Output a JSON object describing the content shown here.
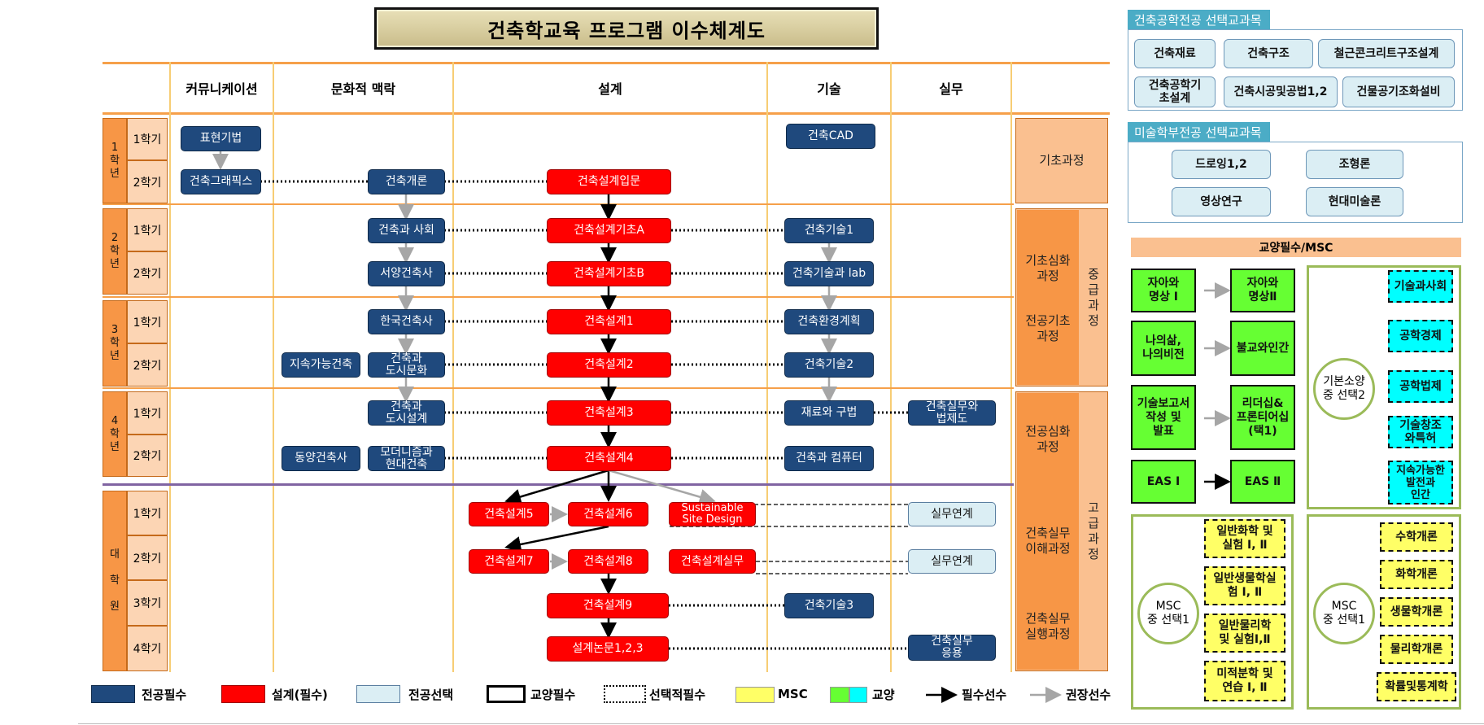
{
  "title": "건축학교육 프로그램 이수체계도",
  "columns": [
    "커뮤니케이션",
    "문화적 맥락",
    "설계",
    "기술",
    "실무"
  ],
  "years": [
    "1\n학\n년",
    "2\n학\n년",
    "3\n학\n년",
    "4\n학\n년",
    "대\n\n학\n\n원"
  ],
  "semesters": [
    "1학기",
    "2학기",
    "1학기",
    "2학기",
    "1학기",
    "2학기",
    "1학기",
    "2학기",
    "1학기",
    "2학기",
    "3학기",
    "4학기"
  ],
  "stages": {
    "s1": "기초과정",
    "s2": "기초심화\n과정",
    "s3": "전공기초\n과정",
    "s4": "전공심화\n과정",
    "s5": "건축실무\n이해과정",
    "s6": "건축실무\n실행과정",
    "mid": "중\n급\n과\n정",
    "high": "고\n급\n과\n정"
  },
  "nodes": {
    "n1": "표현기법",
    "n2": "건축그래픽스",
    "n3": "건축개론",
    "n4": "건축설계입문",
    "n5": "건축CAD",
    "n6": "건축과 사회",
    "n7": "건축설계기초A",
    "n8": "건축기술1",
    "n9": "서양건축사",
    "n10": "건축설계기초B",
    "n11": "건축기술과 lab",
    "n12": "한국건축사",
    "n13": "건축설계1",
    "n14": "건축환경계획",
    "n15": "지속가능건축",
    "n16": "건축과\n도시문화",
    "n17": "건축설계2",
    "n18": "건축기술2",
    "n19": "건축과\n도시설계",
    "n20": "건축설계3",
    "n21": "재료와 구법",
    "n22": "건축실무와\n법제도",
    "n23": "동양건축사",
    "n24": "모더니즘과\n현대건축",
    "n25": "건축설계4",
    "n26": "건축과 컴퓨터",
    "n27": "건축설계5",
    "n28": "건축설계6",
    "n29": "Sustainable\nSite Design",
    "n30": "실무연계",
    "n31": "건축설계7",
    "n32": "건축설계8",
    "n33": "건축설계실무",
    "n34": "실무연계",
    "n35": "건축설계9",
    "n36": "건축기술3",
    "n37": "설계논문1,2,3",
    "n38": "건축실무\n응용"
  },
  "side1": {
    "header": "건축공학전공 선택교과목",
    "items": [
      "건축재료",
      "건축구조",
      "철근콘크리트구조설계",
      "건축공학기\n초설계",
      "건축시공및공법1,2",
      "건물공기조화설비"
    ]
  },
  "side2": {
    "header": "미술학부전공 선택교과목",
    "items": [
      "드로잉1,2",
      "조형론",
      "영상연구",
      "현대미술론"
    ]
  },
  "side3": {
    "header": "교양필수/MSC",
    "green": [
      "자아와\n명상 I",
      "자아와\n명상Ⅱ",
      "나의삶,\n나의비전",
      "불교와인간",
      "기술보고서\n작성 및\n발표",
      "리더십&\n프론티어십\n(택1)",
      "EAS Ⅰ",
      "EAS Ⅱ"
    ],
    "cyan": [
      "기술과사회",
      "공학경제",
      "공학법제",
      "기술창조\n와특허",
      "지속가능한\n발전과\n인간"
    ],
    "circle1": "기본소양\n중 선택2",
    "msc_left": [
      "일반화학 및\n실험 Ⅰ, Ⅱ",
      "일반생물학실\n험 Ⅰ, Ⅱ",
      "일반물리학\n및 실험Ⅰ,Ⅱ",
      "미적분학 및\n연습 Ⅰ, Ⅱ"
    ],
    "msc_right": [
      "수학개론",
      "화학개론",
      "생물학개론",
      "물리학개론",
      "확률및통계학"
    ],
    "circle2": "MSC\n중 선택1",
    "circle3": "MSC\n중 선택1"
  },
  "legend": {
    "l1": "전공필수",
    "l2": "설계(필수)",
    "l3": "전공선택",
    "l4": "교양필수",
    "l5": "선택적필수",
    "l6": "MSC",
    "l7": "교양",
    "l8": "필수선수",
    "l9": "권장선수"
  },
  "colors": {
    "major_required": "#1f497d",
    "design_required": "#ff0000",
    "major_elective": "#dbeef4",
    "msc": "#ffff66",
    "liberal_green": "#66ff33",
    "liberal_cyan": "#00ffff",
    "orange": "#f79646"
  }
}
